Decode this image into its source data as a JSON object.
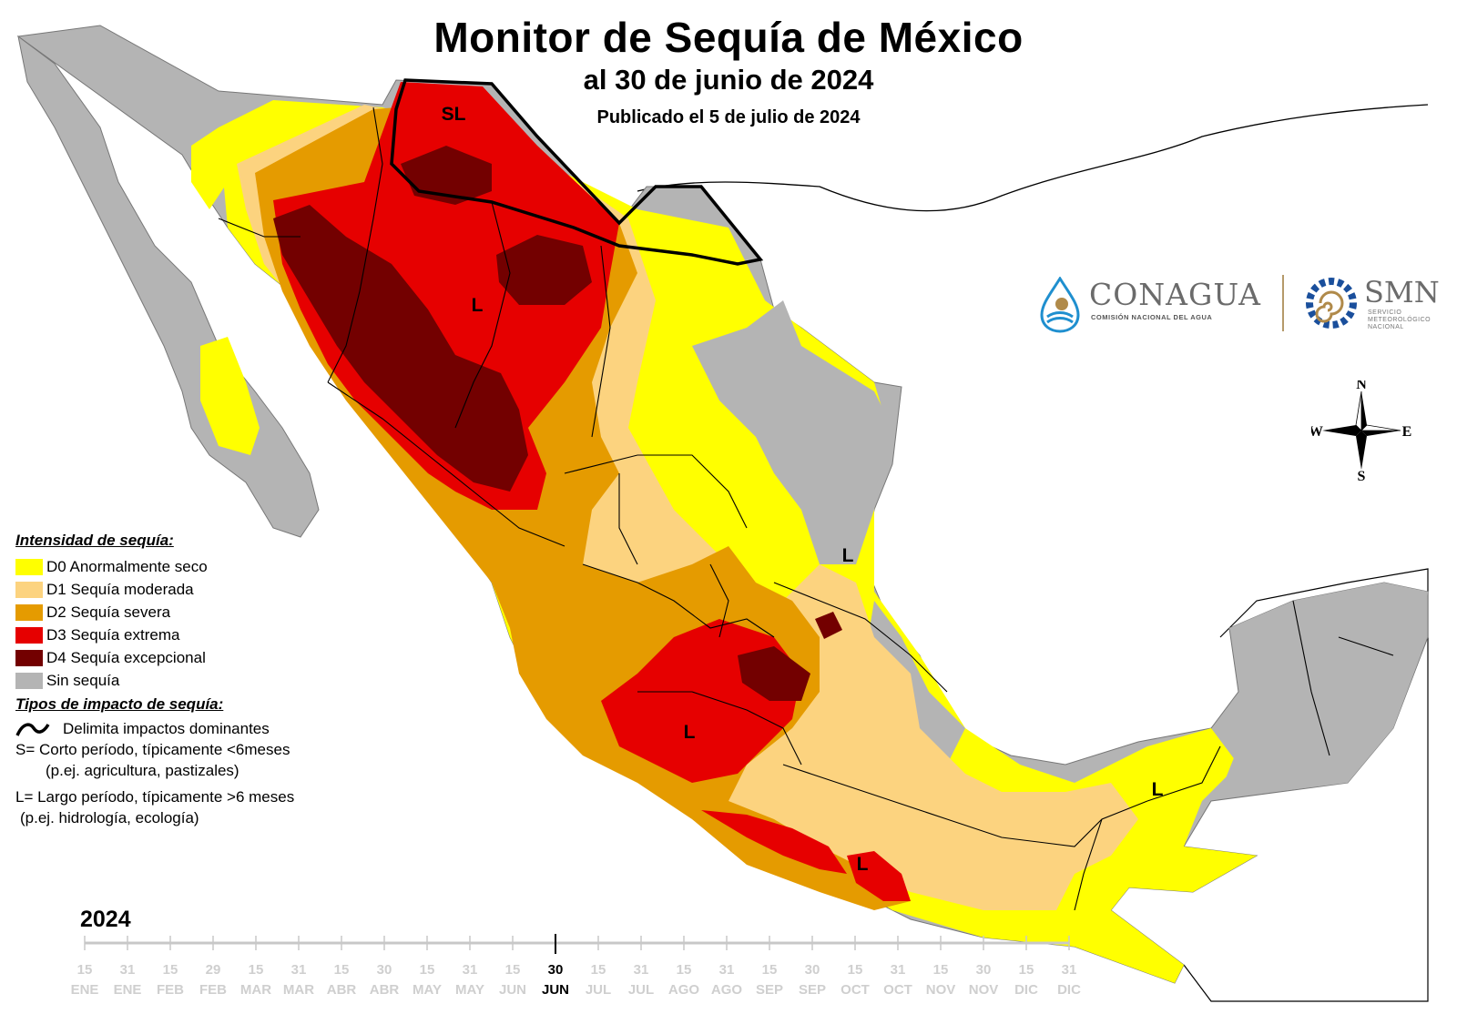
{
  "title": "Monitor de Sequía de México",
  "subtitle": "al 30 de junio de 2024",
  "published": "Publicado el 5 de julio de 2024",
  "legend": {
    "heading": "Intensidad de sequía:",
    "items": [
      {
        "label": "D0 Anormalmente seco",
        "color": "#ffff00"
      },
      {
        "label": "D1 Sequía moderada",
        "color": "#fcd37f"
      },
      {
        "label": "D2 Sequía severa",
        "color": "#e59b00"
      },
      {
        "label": "D3 Sequía extrema",
        "color": "#e60000"
      },
      {
        "label": "D4 Sequía excepcional",
        "color": "#730000"
      },
      {
        "label": "Sin sequía",
        "color": "#b4b4b4"
      }
    ],
    "impact_heading": "Tipos de impacto de sequía:",
    "impact_line_label": "Delimita impactos dominantes",
    "short_term_1": "S= Corto período, típicamente <6meses",
    "short_term_2": "(p.ej. agricultura, pastizales)",
    "long_term_1": "L= Largo período, típicamente >6 meses",
    "long_term_2": "(p.ej. hidrología, ecología)"
  },
  "map_labels": [
    "SL",
    "L",
    "L",
    "L",
    "L",
    "L"
  ],
  "logos": {
    "conagua": "CONAGUA",
    "conagua_sub": "COMISIÓN NACIONAL DEL AGUA",
    "smn": "SMN",
    "smn_sub": [
      "SERVICIO",
      "METEOROLÓGICO",
      "NACIONAL"
    ]
  },
  "compass": {
    "n": "N",
    "s": "S",
    "e": "E",
    "w": "W"
  },
  "timeline": {
    "year": "2024",
    "ticks": [
      {
        "day": "15",
        "month": "ENE"
      },
      {
        "day": "31",
        "month": "ENE"
      },
      {
        "day": "15",
        "month": "FEB"
      },
      {
        "day": "29",
        "month": "FEB"
      },
      {
        "day": "15",
        "month": "MAR"
      },
      {
        "day": "31",
        "month": "MAR"
      },
      {
        "day": "15",
        "month": "ABR"
      },
      {
        "day": "30",
        "month": "ABR"
      },
      {
        "day": "15",
        "month": "MAY"
      },
      {
        "day": "31",
        "month": "MAY"
      },
      {
        "day": "15",
        "month": "JUN"
      },
      {
        "day": "30",
        "month": "JUN"
      },
      {
        "day": "15",
        "month": "JUL"
      },
      {
        "day": "31",
        "month": "JUL"
      },
      {
        "day": "15",
        "month": "AGO"
      },
      {
        "day": "31",
        "month": "AGO"
      },
      {
        "day": "15",
        "month": "SEP"
      },
      {
        "day": "30",
        "month": "SEP"
      },
      {
        "day": "15",
        "month": "OCT"
      },
      {
        "day": "31",
        "month": "OCT"
      },
      {
        "day": "15",
        "month": "NOV"
      },
      {
        "day": "30",
        "month": "NOV"
      },
      {
        "day": "15",
        "month": "DIC"
      },
      {
        "day": "31",
        "month": "DIC"
      }
    ],
    "current_index": 11
  }
}
